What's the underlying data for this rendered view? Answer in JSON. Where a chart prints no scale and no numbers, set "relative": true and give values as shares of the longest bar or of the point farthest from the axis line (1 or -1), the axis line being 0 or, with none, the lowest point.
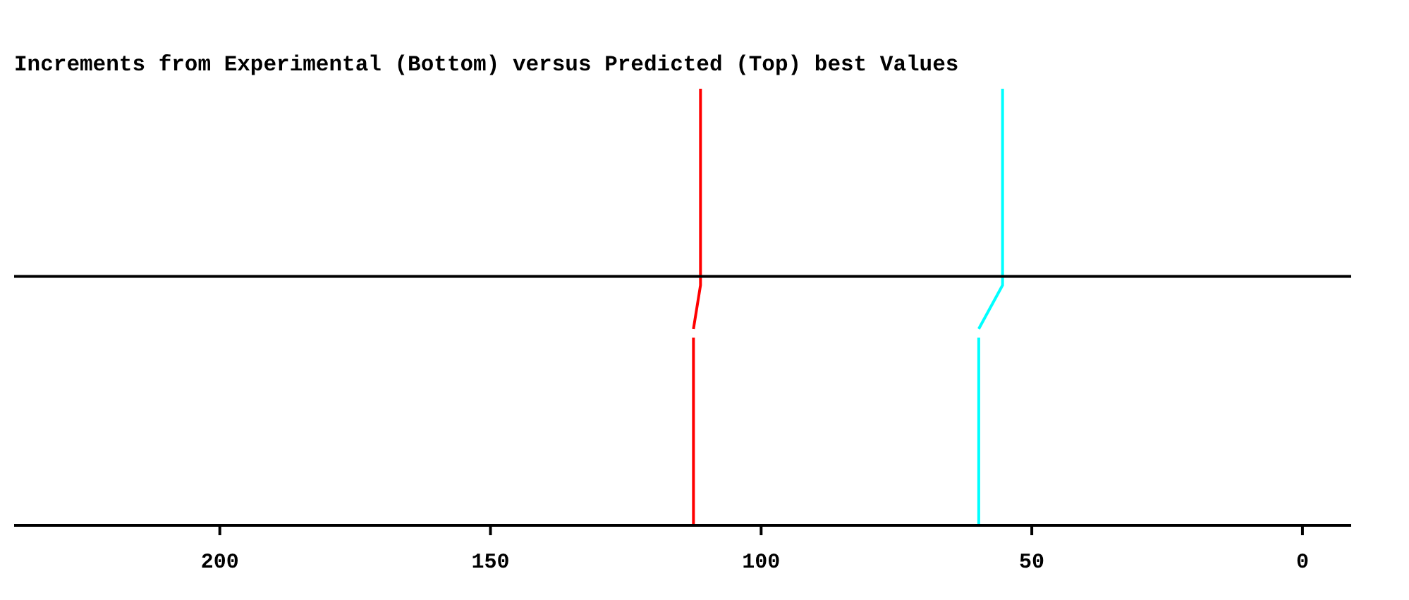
{
  "chart_data": {
    "type": "line",
    "title": "Increments from Experimental (Bottom) versus Predicted (Top) best Values",
    "relative": true,
    "xlim": [
      238,
      -9
    ],
    "xticks": [
      200,
      150,
      100,
      50,
      0
    ],
    "tick_labels": "x",
    "grid": false,
    "ref_lines": [
      {
        "axis": "y",
        "value": 0.57,
        "color": "#000000"
      }
    ],
    "series": [
      {
        "color": "#ff0000",
        "x": [
          112.5,
          112.5,
          null,
          112.5,
          111.2,
          111.2,
          111.2
        ],
        "values": [
          0,
          0.43,
          null,
          0.45,
          0.55,
          0.57,
          1
        ]
      },
      {
        "color": "#00ffff",
        "x": [
          59.8,
          59.8,
          null,
          59.8,
          55.4,
          55.4,
          55.4
        ],
        "values": [
          0,
          0.43,
          null,
          0.45,
          0.55,
          0.57,
          1
        ]
      }
    ]
  }
}
